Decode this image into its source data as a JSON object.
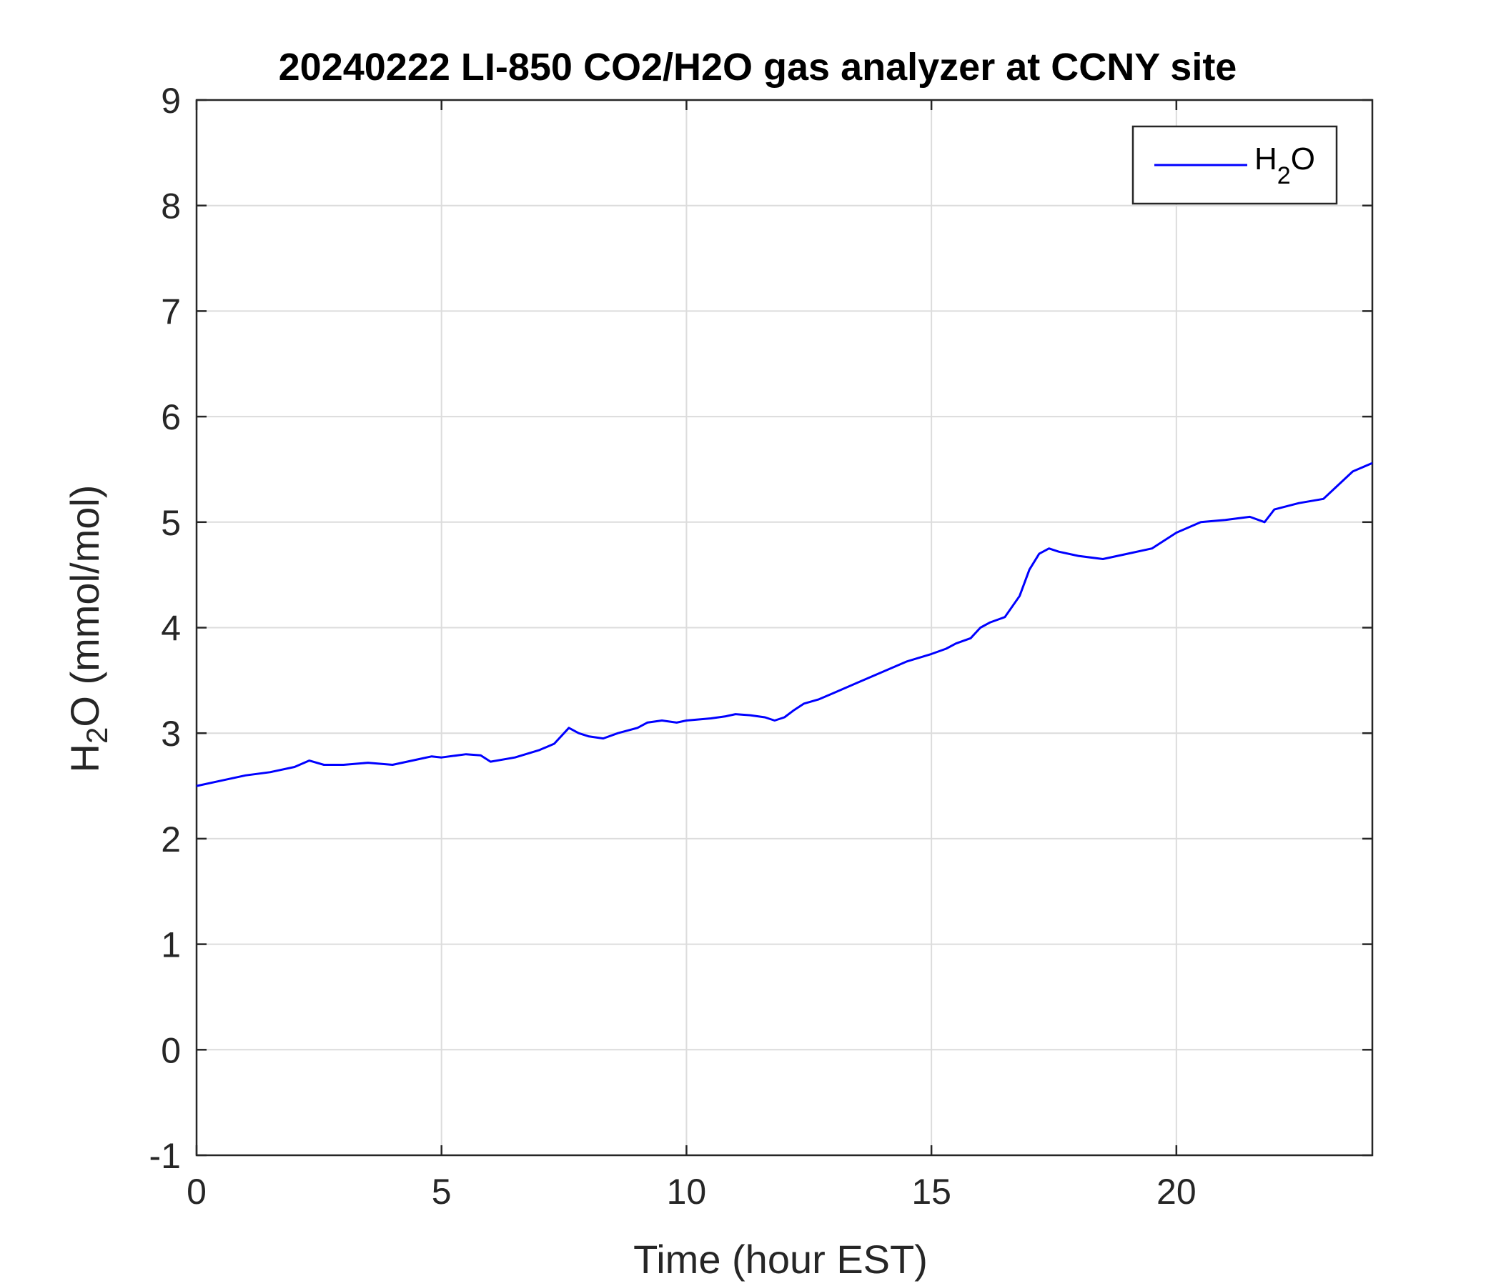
{
  "chart_data": {
    "type": "line",
    "title": "20240222 LI-850 CO2/H2O gas analyzer at CCNY site",
    "xlabel": "Time (hour EST)",
    "ylabel": {
      "main": "H",
      "sub": "2",
      "rest": "O (mmol/mol)"
    },
    "xlim": [
      0,
      24
    ],
    "ylim": [
      -1,
      9
    ],
    "xticks": [
      0,
      5,
      10,
      15,
      20
    ],
    "yticks": [
      -1,
      0,
      1,
      2,
      3,
      4,
      5,
      6,
      7,
      8,
      9
    ],
    "grid": true,
    "legend_position": "top-right",
    "series": [
      {
        "name": "H2O",
        "legend": {
          "main": "H",
          "sub": "2",
          "rest": "O"
        },
        "color": "#0000ff",
        "x": [
          0,
          0.5,
          1,
          1.5,
          2,
          2.3,
          2.6,
          3,
          3.5,
          4,
          4.5,
          4.8,
          5,
          5.5,
          5.8,
          6,
          6.5,
          7,
          7.3,
          7.6,
          7.8,
          8,
          8.3,
          8.6,
          9,
          9.2,
          9.5,
          9.8,
          10,
          10.5,
          10.8,
          11,
          11.3,
          11.6,
          11.8,
          12,
          12.2,
          12.4,
          12.7,
          13,
          13.5,
          14,
          14.5,
          15,
          15.3,
          15.5,
          15.8,
          16,
          16.2,
          16.5,
          16.8,
          17,
          17.2,
          17.4,
          17.6,
          18,
          18.5,
          19,
          19.5,
          20,
          20.5,
          21,
          21.5,
          21.8,
          22,
          22.5,
          23,
          23.3,
          23.6,
          24
        ],
        "y": [
          2.5,
          2.55,
          2.6,
          2.63,
          2.68,
          2.74,
          2.7,
          2.7,
          2.72,
          2.7,
          2.75,
          2.78,
          2.77,
          2.8,
          2.79,
          2.73,
          2.77,
          2.84,
          2.9,
          3.05,
          3.0,
          2.97,
          2.95,
          3.0,
          3.05,
          3.1,
          3.12,
          3.1,
          3.12,
          3.14,
          3.16,
          3.18,
          3.17,
          3.15,
          3.12,
          3.15,
          3.22,
          3.28,
          3.32,
          3.38,
          3.48,
          3.58,
          3.68,
          3.75,
          3.8,
          3.85,
          3.9,
          4.0,
          4.05,
          4.1,
          4.3,
          4.55,
          4.7,
          4.75,
          4.72,
          4.68,
          4.65,
          4.7,
          4.75,
          4.9,
          5.0,
          5.02,
          5.05,
          5.0,
          5.12,
          5.18,
          5.22,
          5.35,
          5.48,
          5.56
        ]
      }
    ]
  }
}
